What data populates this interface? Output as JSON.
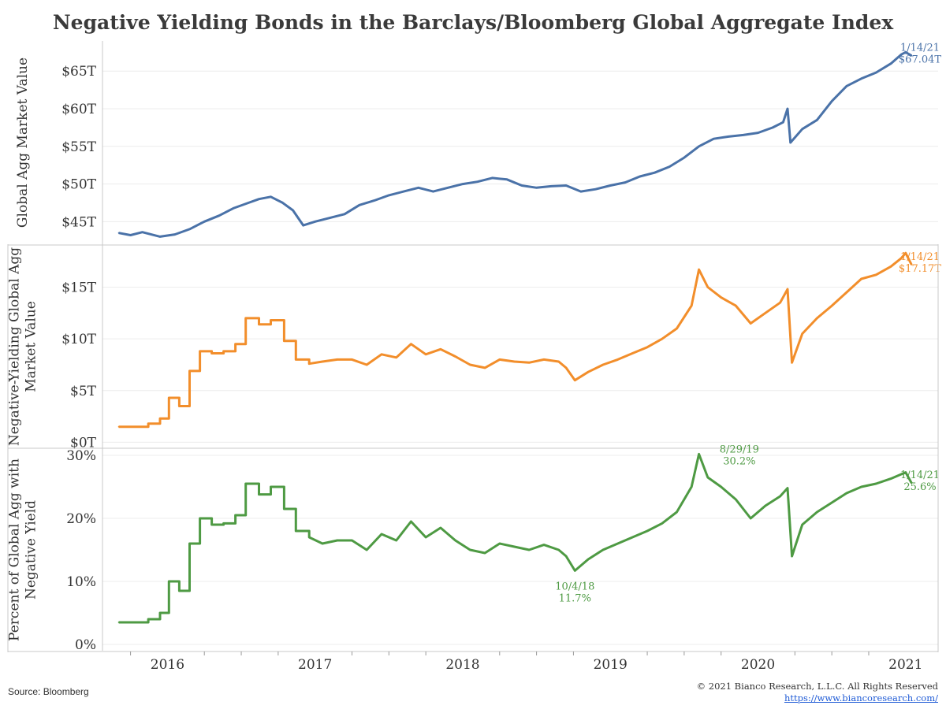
{
  "title": "Negative Yielding Bonds in the Barclays/Bloomberg Global Aggregate Index",
  "footer": {
    "source": "Source: Bloomberg",
    "copyright": "© 2021 Bianco Research, L.L.C. All Rights Reserved",
    "url": "https://www.biancoresearch.com/"
  },
  "colors": {
    "panel1": "#4a72a8",
    "panel2": "#f28e2b",
    "panel3": "#4e9a43",
    "grid": "#ececec",
    "frame": "#c8c8c8"
  },
  "chart_data": [
    {
      "type": "line",
      "ylabel": "Global Agg Market Value",
      "ylim": [
        42,
        69
      ],
      "yticks": [
        45,
        50,
        55,
        60,
        65
      ],
      "ytick_labels": [
        "$45T",
        "$50T",
        "$55T",
        "$60T",
        "$65T"
      ],
      "x_ticks": [
        "2016",
        "2017",
        "2018",
        "2019",
        "2020",
        "2021"
      ],
      "series": [
        {
          "x": [
            2015.67,
            2015.75,
            2015.83,
            2015.95,
            2016.05,
            2016.15,
            2016.25,
            2016.35,
            2016.45,
            2016.55,
            2016.62,
            2016.7,
            2016.78,
            2016.85,
            2016.92,
            2017.0,
            2017.1,
            2017.2,
            2017.3,
            2017.4,
            2017.5,
            2017.6,
            2017.7,
            2017.8,
            2017.9,
            2018.0,
            2018.1,
            2018.2,
            2018.3,
            2018.4,
            2018.5,
            2018.6,
            2018.7,
            2018.8,
            2018.9,
            2019.0,
            2019.1,
            2019.2,
            2019.3,
            2019.4,
            2019.5,
            2019.6,
            2019.7,
            2019.8,
            2019.9,
            2020.0,
            2020.1,
            2020.17,
            2020.2,
            2020.22,
            2020.3,
            2020.4,
            2020.5,
            2020.6,
            2020.7,
            2020.8,
            2020.9,
            2020.97,
            2021.0,
            2021.04
          ],
          "y": [
            43.5,
            43.2,
            43.6,
            43.0,
            43.3,
            44.0,
            45.0,
            45.8,
            46.8,
            47.5,
            48.0,
            48.3,
            47.5,
            46.5,
            44.5,
            45.0,
            45.5,
            46.0,
            47.2,
            47.8,
            48.5,
            49.0,
            49.5,
            49.0,
            49.5,
            50.0,
            50.3,
            50.8,
            50.6,
            49.8,
            49.5,
            49.7,
            49.8,
            49.0,
            49.3,
            49.8,
            50.2,
            51.0,
            51.5,
            52.3,
            53.5,
            55.0,
            56.0,
            56.3,
            56.5,
            56.8,
            57.5,
            58.2,
            60.0,
            55.5,
            57.3,
            58.5,
            61.0,
            63.0,
            64.0,
            64.8,
            66.0,
            67.2,
            67.5,
            67.04
          ]
        }
      ],
      "annotations": [
        {
          "x": 2021.04,
          "y": 67.04,
          "date": "1/14/21",
          "value": "$67.04T"
        }
      ]
    },
    {
      "type": "line",
      "ylabel": "Negative-Yielding Global Agg Market Value",
      "ylim": [
        -0.5,
        19
      ],
      "yticks": [
        0,
        5,
        10,
        15
      ],
      "ytick_labels": [
        "$0T",
        "$5T",
        "$10T",
        "$15T"
      ],
      "series": [
        {
          "x": [
            2015.67,
            2015.78,
            2015.78,
            2015.87,
            2015.87,
            2015.95,
            2015.95,
            2016.01,
            2016.01,
            2016.08,
            2016.08,
            2016.15,
            2016.15,
            2016.22,
            2016.22,
            2016.3,
            2016.3,
            2016.38,
            2016.38,
            2016.46,
            2016.46,
            2016.53,
            2016.53,
            2016.62,
            2016.62,
            2016.7,
            2016.7,
            2016.79,
            2016.79,
            2016.87,
            2016.87,
            2016.96,
            2016.96,
            2017.05,
            2017.15,
            2017.25,
            2017.35,
            2017.45,
            2017.55,
            2017.65,
            2017.75,
            2017.85,
            2017.95,
            2018.05,
            2018.15,
            2018.25,
            2018.35,
            2018.45,
            2018.55,
            2018.65,
            2018.7,
            2018.76,
            2018.85,
            2018.95,
            2019.05,
            2019.15,
            2019.25,
            2019.35,
            2019.45,
            2019.55,
            2019.6,
            2019.66,
            2019.75,
            2019.85,
            2019.95,
            2020.05,
            2020.15,
            2020.2,
            2020.23,
            2020.3,
            2020.4,
            2020.5,
            2020.6,
            2020.7,
            2020.8,
            2020.9,
            2020.97,
            2021.0,
            2021.04
          ],
          "y": [
            1.5,
            1.5,
            1.5,
            1.5,
            1.8,
            1.8,
            2.3,
            2.3,
            4.3,
            4.3,
            3.5,
            3.5,
            6.9,
            6.9,
            8.8,
            8.8,
            8.6,
            8.6,
            8.8,
            8.8,
            9.5,
            9.5,
            12.0,
            12.0,
            11.4,
            11.4,
            11.8,
            11.8,
            9.8,
            9.8,
            8.0,
            8.0,
            7.6,
            7.8,
            8.0,
            8.0,
            7.5,
            8.5,
            8.2,
            9.5,
            8.5,
            9.0,
            8.3,
            7.5,
            7.2,
            8.0,
            7.8,
            7.7,
            8.0,
            7.8,
            7.2,
            6.0,
            6.8,
            7.5,
            8.0,
            8.6,
            9.2,
            10.0,
            11.0,
            13.2,
            16.7,
            15.0,
            14.0,
            13.2,
            11.5,
            12.5,
            13.5,
            14.8,
            7.7,
            10.5,
            12.0,
            13.2,
            14.5,
            15.8,
            16.2,
            17.0,
            17.8,
            18.3,
            17.17
          ]
        }
      ],
      "annotations": [
        {
          "x": 2021.04,
          "y": 17.17,
          "date": "1/14/21",
          "value": "$17.17T"
        }
      ]
    },
    {
      "type": "line",
      "ylabel": "Percent of Global Agg with Negative Yield",
      "ylim": [
        -1,
        31
      ],
      "yticks": [
        0,
        10,
        20,
        30
      ],
      "ytick_labels": [
        "0%",
        "10%",
        "20%",
        "30%"
      ],
      "series": [
        {
          "x": [
            2015.67,
            2015.78,
            2015.78,
            2015.87,
            2015.87,
            2015.95,
            2015.95,
            2016.01,
            2016.01,
            2016.08,
            2016.08,
            2016.15,
            2016.15,
            2016.22,
            2016.22,
            2016.3,
            2016.3,
            2016.38,
            2016.38,
            2016.46,
            2016.46,
            2016.53,
            2016.53,
            2016.62,
            2016.62,
            2016.7,
            2016.7,
            2016.79,
            2016.79,
            2016.87,
            2016.87,
            2016.96,
            2016.96,
            2017.05,
            2017.15,
            2017.25,
            2017.35,
            2017.45,
            2017.55,
            2017.65,
            2017.75,
            2017.85,
            2017.95,
            2018.05,
            2018.15,
            2018.25,
            2018.35,
            2018.45,
            2018.55,
            2018.65,
            2018.7,
            2018.76,
            2018.85,
            2018.95,
            2019.05,
            2019.15,
            2019.25,
            2019.35,
            2019.45,
            2019.55,
            2019.6,
            2019.66,
            2019.75,
            2019.85,
            2019.95,
            2020.05,
            2020.15,
            2020.2,
            2020.23,
            2020.3,
            2020.4,
            2020.5,
            2020.6,
            2020.7,
            2020.8,
            2020.9,
            2020.97,
            2021.0,
            2021.04
          ],
          "y": [
            3.5,
            3.5,
            3.5,
            3.5,
            4.0,
            4.0,
            5.0,
            5.0,
            10.0,
            10.0,
            8.5,
            8.5,
            16.0,
            16.0,
            20.0,
            20.0,
            19.0,
            19.0,
            19.2,
            19.2,
            20.5,
            20.5,
            25.5,
            25.5,
            23.8,
            23.8,
            25.0,
            25.0,
            21.5,
            21.5,
            18.0,
            18.0,
            17.0,
            16.0,
            16.5,
            16.5,
            15.0,
            17.5,
            16.5,
            19.5,
            17.0,
            18.5,
            16.5,
            15.0,
            14.5,
            16.0,
            15.5,
            15.0,
            15.8,
            15.0,
            14.0,
            11.7,
            13.5,
            15.0,
            16.0,
            17.0,
            18.0,
            19.2,
            21.0,
            25.0,
            30.2,
            26.5,
            25.0,
            23.0,
            20.0,
            22.0,
            23.5,
            24.8,
            14.0,
            19.0,
            21.0,
            22.5,
            24.0,
            25.0,
            25.5,
            26.3,
            27.0,
            27.3,
            25.6
          ]
        }
      ],
      "annotations": [
        {
          "x": 2021.04,
          "y": 25.6,
          "date": "1/14/21",
          "value": "25.6%"
        },
        {
          "x": 2019.66,
          "y": 30.2,
          "date": "8/29/19",
          "value": "30.2%"
        },
        {
          "x": 2018.76,
          "y": 11.7,
          "date": "10/4/18",
          "value": "11.7%"
        }
      ]
    }
  ]
}
